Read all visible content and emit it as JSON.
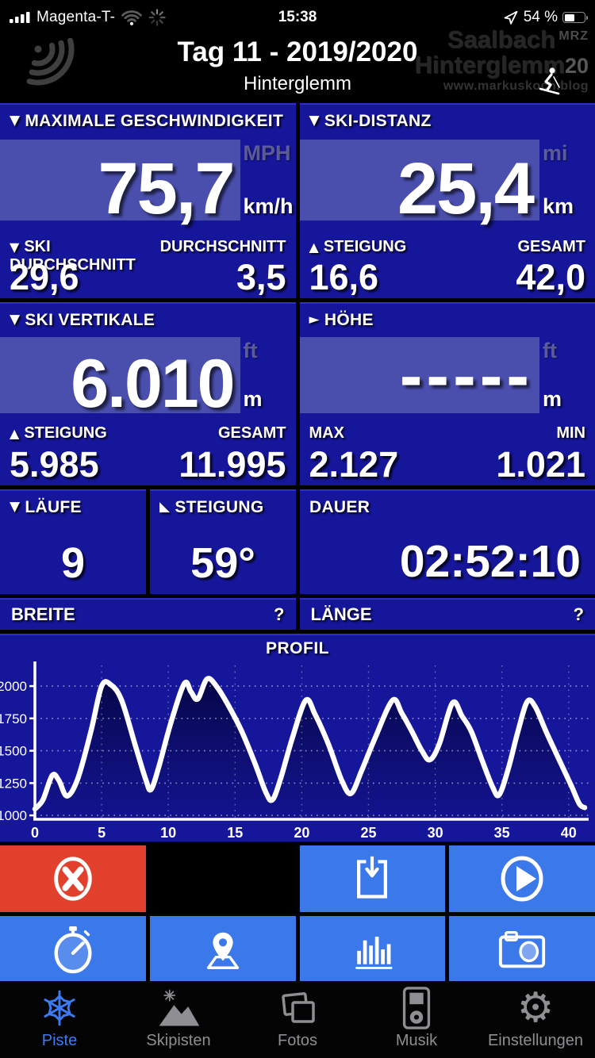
{
  "status_bar": {
    "carrier": "Magenta-T-",
    "time": "15:38",
    "battery_text": "54 %",
    "battery_level": 54,
    "icons": [
      "cellular-signal-icon",
      "wifi-icon",
      "network-activity-spinner-icon",
      "location-arrow-icon",
      "battery-icon"
    ]
  },
  "header": {
    "title": "Tag 11 - 2019/2020",
    "subtitle": "Hinterglemm",
    "gps_icon": "gps-signal-arcs-icon",
    "watermark": {
      "line1": "Saalbach",
      "line1_tag": "MRZ",
      "line2": "Hinterglemm",
      "line2_tag": "20",
      "url": "www.markuskoch.blog",
      "skier_icon": "skier-icon"
    }
  },
  "stats": {
    "max_speed": {
      "icon": "▼",
      "label": "MAXIMALE GESCHWINDIGKEIT",
      "value": "75,7",
      "unit_top": "MPH",
      "unit_bottom": "km/h",
      "sub_left": {
        "icon": "▼",
        "label": "SKI DURCHSCHNITT",
        "value": "29,6"
      },
      "sub_right": {
        "icon": "",
        "label": "DURCHSCHNITT",
        "value": "3,5"
      }
    },
    "ski_distance": {
      "icon": "▼",
      "label": "SKI-DISTANZ",
      "value": "25,4",
      "unit_top": "mi",
      "unit_bottom": "km",
      "sub_left": {
        "icon": "▲",
        "label": "STEIGUNG",
        "value": "16,6"
      },
      "sub_right": {
        "icon": "",
        "label": "GESAMT",
        "value": "42,0"
      }
    },
    "ski_vertical": {
      "icon": "▼",
      "label": "SKI VERTIKALE",
      "value": "6.010",
      "unit_top": "ft",
      "unit_bottom": "m",
      "sub_left": {
        "icon": "▲",
        "label": "STEIGUNG",
        "value": "5.985"
      },
      "sub_right": {
        "icon": "",
        "label": "GESAMT",
        "value": "11.995"
      }
    },
    "altitude": {
      "icon": "►",
      "label": "HÖHE",
      "value": "-----",
      "unit_top": "ft",
      "unit_bottom": "m",
      "sub_left": {
        "icon": "",
        "label": "MAX",
        "value": "2.127"
      },
      "sub_right": {
        "icon": "",
        "label": "MIN",
        "value": "1.021"
      }
    },
    "runs": {
      "icon": "▼",
      "label": "LÄUFE",
      "value": "9"
    },
    "slope": {
      "icon": "◣",
      "label": "STEIGUNG",
      "value": "59°"
    },
    "duration": {
      "icon": "",
      "label": "DAUER",
      "value": "02:52:10"
    },
    "latitude": {
      "label": "BREITE",
      "value": "?"
    },
    "longitude": {
      "label": "LÄNGE",
      "value": "?"
    }
  },
  "chart_data": {
    "type": "area",
    "title": "PROFIL",
    "xlabel": "",
    "ylabel": "",
    "x_unit": "km (distance)",
    "y_unit": "m (elevation)",
    "x_ticks": [
      0,
      5,
      10,
      15,
      20,
      25,
      30,
      35,
      40
    ],
    "y_ticks": [
      1000,
      1250,
      1500,
      1750,
      2000
    ],
    "xlim": [
      0,
      41.5
    ],
    "ylim": [
      970,
      2160
    ],
    "grid": "dotted",
    "line_color": "#ffffff",
    "points": [
      [
        0,
        1050
      ],
      [
        0.6,
        1120
      ],
      [
        1.3,
        1310
      ],
      [
        1.8,
        1270
      ],
      [
        2.4,
        1150
      ],
      [
        3.2,
        1280
      ],
      [
        4.2,
        1650
      ],
      [
        5.0,
        2000
      ],
      [
        5.7,
        2010
      ],
      [
        6.5,
        1890
      ],
      [
        7.5,
        1550
      ],
      [
        8.3,
        1280
      ],
      [
        8.7,
        1200
      ],
      [
        9.3,
        1380
      ],
      [
        10.2,
        1720
      ],
      [
        11.2,
        2020
      ],
      [
        11.7,
        1955
      ],
      [
        12.2,
        1900
      ],
      [
        12.9,
        2055
      ],
      [
        13.6,
        2000
      ],
      [
        14.5,
        1850
      ],
      [
        15.5,
        1650
      ],
      [
        16.5,
        1400
      ],
      [
        17.3,
        1180
      ],
      [
        17.8,
        1120
      ],
      [
        18.4,
        1280
      ],
      [
        19.3,
        1600
      ],
      [
        20.3,
        1890
      ],
      [
        21.0,
        1780
      ],
      [
        22.0,
        1550
      ],
      [
        23.0,
        1270
      ],
      [
        23.7,
        1170
      ],
      [
        24.5,
        1350
      ],
      [
        25.5,
        1600
      ],
      [
        26.8,
        1890
      ],
      [
        27.5,
        1790
      ],
      [
        28.3,
        1640
      ],
      [
        29.0,
        1500
      ],
      [
        29.6,
        1430
      ],
      [
        30.3,
        1550
      ],
      [
        31.3,
        1870
      ],
      [
        32.0,
        1770
      ],
      [
        32.7,
        1650
      ],
      [
        33.5,
        1430
      ],
      [
        34.3,
        1220
      ],
      [
        34.8,
        1160
      ],
      [
        35.5,
        1370
      ],
      [
        36.2,
        1650
      ],
      [
        36.9,
        1880
      ],
      [
        37.5,
        1840
      ],
      [
        38.3,
        1650
      ],
      [
        39.2,
        1450
      ],
      [
        40.2,
        1230
      ],
      [
        40.8,
        1090
      ],
      [
        41.2,
        1060
      ]
    ]
  },
  "buttons": {
    "row1": [
      {
        "icon": "stop-x-icon",
        "bg": "#e0402c"
      },
      {
        "icon": "",
        "bg": "#000000"
      },
      {
        "icon": "save-download-icon",
        "bg": "#3b78ea"
      },
      {
        "icon": "play-icon",
        "bg": "#3b78ea"
      }
    ],
    "row2": [
      {
        "icon": "stopwatch-icon",
        "bg": "#3b78ea"
      },
      {
        "icon": "map-pin-icon",
        "bg": "#3b78ea"
      },
      {
        "icon": "bar-chart-icon",
        "bg": "#3b78ea"
      },
      {
        "icon": "camera-icon",
        "bg": "#3b78ea"
      }
    ]
  },
  "tabbar": {
    "items": [
      {
        "label": "Piste",
        "icon": "snowflake-icon",
        "active": true
      },
      {
        "label": "Skipisten",
        "icon": "mountains-icon",
        "active": false
      },
      {
        "label": "Fotos",
        "icon": "photos-icon",
        "active": false
      },
      {
        "label": "Musik",
        "icon": "music-player-icon",
        "active": false
      },
      {
        "label": "Einstellungen",
        "icon": "gear-icon",
        "active": false
      }
    ]
  },
  "colors": {
    "panel_blue": "#16169b",
    "value_box_blue": "#4a4fae",
    "button_blue": "#3b78ea",
    "button_red": "#e0402c",
    "tab_active": "#3b7cf6",
    "tab_inactive": "#8e8e93"
  }
}
